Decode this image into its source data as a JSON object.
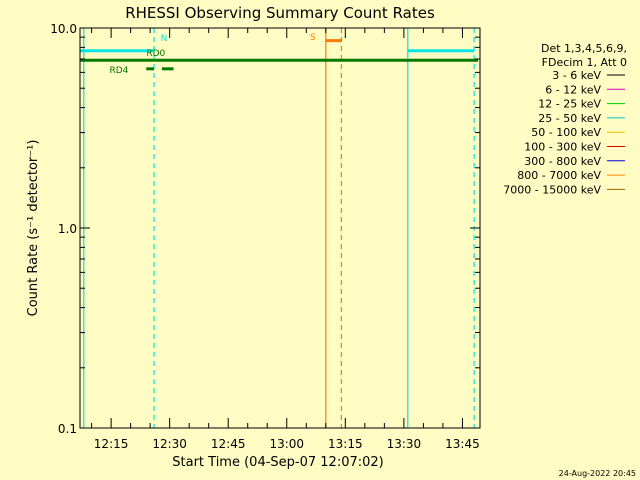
{
  "colors": {
    "background": "#fffdc3",
    "axis": "#000000",
    "cyan": "#00e5e5",
    "green": "#007a00",
    "orange": "#ff7a00"
  },
  "footer": {
    "timestamp": "24-Aug-2022 20:45"
  },
  "legend": {
    "header": [
      "Det 1,3,4,5,6,9,",
      "FDecim 1, Att 0"
    ],
    "entries": [
      {
        "label": "3 - 6 keV",
        "color": "#000000"
      },
      {
        "label": "6 - 12 keV",
        "color": "#d400d4"
      },
      {
        "label": "12 - 25 keV",
        "color": "#00cc00"
      },
      {
        "label": "25 - 50 keV",
        "color": "#00d0d0"
      },
      {
        "label": "50 - 100 keV",
        "color": "#f0c000"
      },
      {
        "label": "100 - 300 keV",
        "color": "#e00000"
      },
      {
        "label": "300 - 800 keV",
        "color": "#0000e0"
      },
      {
        "label": "800 - 7000 keV",
        "color": "#ff8000"
      },
      {
        "label": "7000 - 15000 keV",
        "color": "#a06000"
      }
    ]
  },
  "chart_data": {
    "type": "line",
    "title": "RHESSI Observing Summary Count Rates",
    "xlabel": "Start Time (04-Sep-07 12:07:02)",
    "ylabel": "Count Rate (s⁻¹ detector⁻¹)",
    "y_scale": "log",
    "ylim": [
      0.1,
      10.0
    ],
    "y_ticks": [
      {
        "value": 0.1,
        "label": "0.1"
      },
      {
        "value": 1.0,
        "label": "1.0"
      },
      {
        "value": 10.0,
        "label": "10.0"
      }
    ],
    "xlim": [
      "12:07:02",
      "13:49:30"
    ],
    "x_ticks": [
      "12:15",
      "12:30",
      "12:45",
      "13:00",
      "13:15",
      "13:30",
      "13:45"
    ],
    "markers": [
      {
        "label": "N",
        "time": "12:26:00",
        "color": "#00e5e5"
      },
      {
        "label": "RD0",
        "time": "12:28:00",
        "color": "#007a00"
      },
      {
        "label": "RD4",
        "time": "12:17:00",
        "color": "#007a00"
      },
      {
        "label": "S",
        "time": "13:09:00",
        "color": "#ff7a00"
      }
    ],
    "bars": [
      {
        "start": "12:07:02",
        "end": "12:26:00",
        "value": 7.7,
        "color": "#00e5e5"
      },
      {
        "start": "13:31:00",
        "end": "13:48:00",
        "value": 7.7,
        "color": "#00e5e5"
      },
      {
        "start": "12:07:02",
        "end": "13:49:00",
        "value": 6.9,
        "color": "#007a00"
      },
      {
        "start": "12:24:00",
        "end": "12:26:00",
        "value": 6.25,
        "color": "#007a00"
      },
      {
        "start": "12:28:00",
        "end": "12:31:00",
        "value": 6.25,
        "color": "#007a00"
      },
      {
        "start": "13:10:00",
        "end": "13:14:00",
        "value": 8.65,
        "color": "#ff7a00"
      }
    ],
    "vlines": [
      {
        "time": "12:08:00",
        "style": "solid",
        "color": "#00e5e5"
      },
      {
        "time": "12:26:00",
        "style": "dashed",
        "color": "#00e5e5"
      },
      {
        "time": "13:31:00",
        "style": "solid",
        "color": "#00e5e5"
      },
      {
        "time": "13:48:00",
        "style": "dashed",
        "color": "#00e5e5"
      },
      {
        "time": "13:10:00",
        "style": "solid",
        "color": "#ff7a00"
      },
      {
        "time": "13:14:00",
        "style": "dashed",
        "color": "#ff7a00"
      }
    ]
  }
}
